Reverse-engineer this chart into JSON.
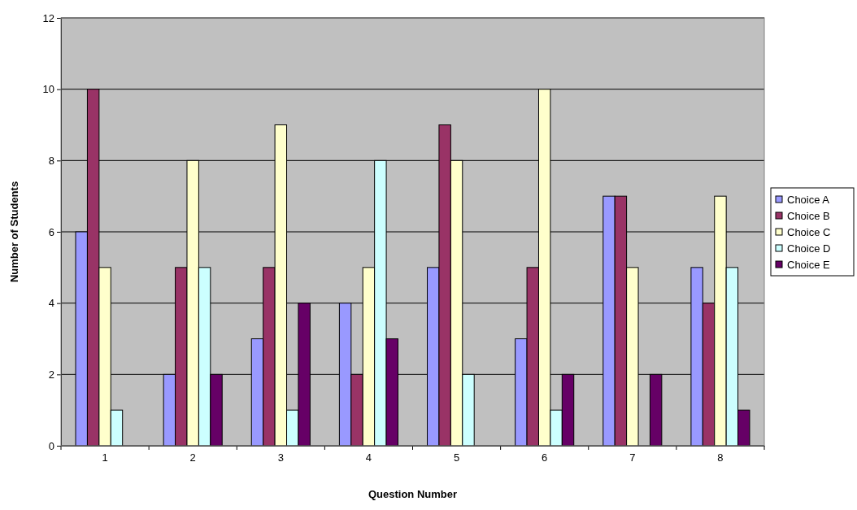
{
  "chart_data": {
    "type": "bar",
    "xlabel": "Question Number",
    "ylabel": "Number of Students",
    "categories": [
      "1",
      "2",
      "3",
      "4",
      "5",
      "6",
      "7",
      "8"
    ],
    "series": [
      {
        "name": "Choice A",
        "color": "#9999ff",
        "values": [
          6,
          2,
          3,
          4,
          5,
          3,
          7,
          5
        ]
      },
      {
        "name": "Choice B",
        "color": "#993366",
        "values": [
          10,
          5,
          5,
          2,
          9,
          5,
          7,
          4
        ]
      },
      {
        "name": "Choice C",
        "color": "#ffffcc",
        "values": [
          5,
          8,
          9,
          5,
          8,
          10,
          5,
          7
        ]
      },
      {
        "name": "Choice D",
        "color": "#ccffff",
        "values": [
          1,
          5,
          1,
          8,
          2,
          1,
          0,
          5
        ]
      },
      {
        "name": "Choice E",
        "color": "#660066",
        "values": [
          0,
          2,
          4,
          3,
          0,
          2,
          2,
          1
        ]
      }
    ],
    "ylim": [
      0,
      12
    ],
    "yticks": [
      0,
      2,
      4,
      6,
      8,
      10,
      12
    ],
    "grid": "y",
    "legend": "right"
  }
}
